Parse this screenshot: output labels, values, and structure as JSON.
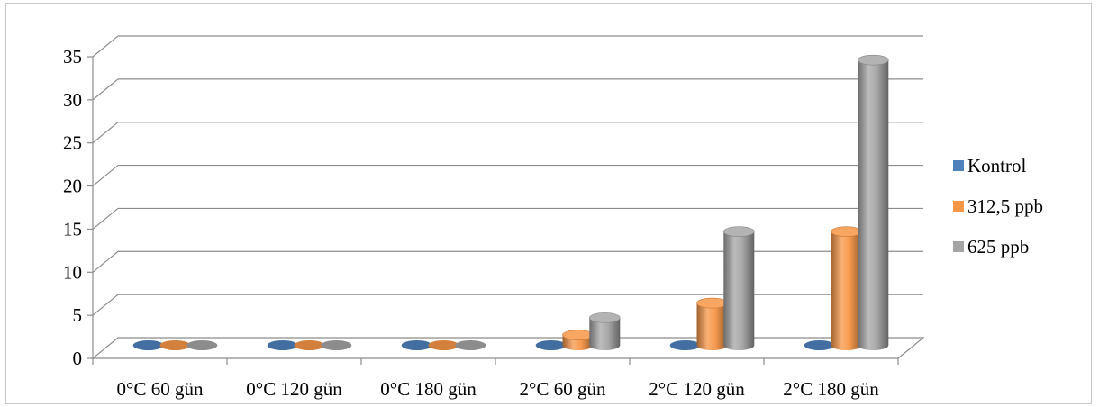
{
  "chart_data": {
    "type": "bar",
    "style": "3d-cylinder",
    "categories": [
      "0°C 60 gün",
      "0°C 120 gün",
      "0°C 180 gün",
      "2°C 60 gün",
      "2°C 120 gün",
      "2°C 180 gün"
    ],
    "series": [
      {
        "name": "Kontrol",
        "color": "#4f81bd",
        "values": [
          0,
          0,
          0,
          0,
          0,
          0
        ]
      },
      {
        "name": "312,5 ppb",
        "color": "#f79646",
        "values": [
          0,
          0,
          0,
          1.2,
          4.9,
          13.2
        ]
      },
      {
        "name": "625 ppb",
        "color": "#a5a5a5",
        "values": [
          0,
          0,
          0,
          3.2,
          13.2,
          33.1
        ]
      }
    ],
    "yticks": [
      "0",
      "5",
      "10",
      "15",
      "20",
      "25",
      "30",
      "35"
    ],
    "ylim": [
      0,
      35
    ],
    "grid": true,
    "legend_position": "right"
  }
}
